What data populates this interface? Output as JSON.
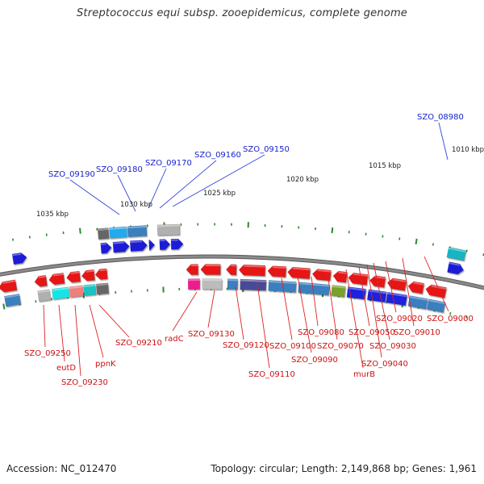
{
  "title": "Streptococcus equi subsp. zooepidemicus, complete genome",
  "footer": {
    "accession": "Accession: NC_012470",
    "topology": "Topology: circular; Length: 2,149,868 bp; Genes: 1,961"
  },
  "colors": {
    "backbone": "#8a8a8a",
    "tick": "#2a8a2a",
    "label_top": "#1a22cc",
    "label_bottom": "#cc1111",
    "callout_top": "#3344dd",
    "callout_bottom": "#dd2222"
  },
  "scale_labels": [
    "1035 kbp",
    "1030 kbp",
    "1025 kbp",
    "1020 kbp",
    "1015 kbp",
    "1010 kbp"
  ],
  "labels_top": [
    "SZO_09190",
    "SZO_09180",
    "SZO_09170",
    "SZO_09160",
    "SZO_09150",
    "SZO_08980"
  ],
  "labels_bottom": [
    "SZO_09250",
    "eutD",
    "SZO_09230",
    "ppnK",
    "SZO_09210",
    "radC",
    "SZO_09130",
    "SZO_09120",
    "SZO_09110",
    "SZO_09100",
    "SZO_09090",
    "SZO_09080",
    "SZO_09070",
    "murB",
    "SZO_09050",
    "SZO_09040",
    "SZO_09030",
    "SZO_09020",
    "SZO_09010",
    "SZO_09000"
  ]
}
